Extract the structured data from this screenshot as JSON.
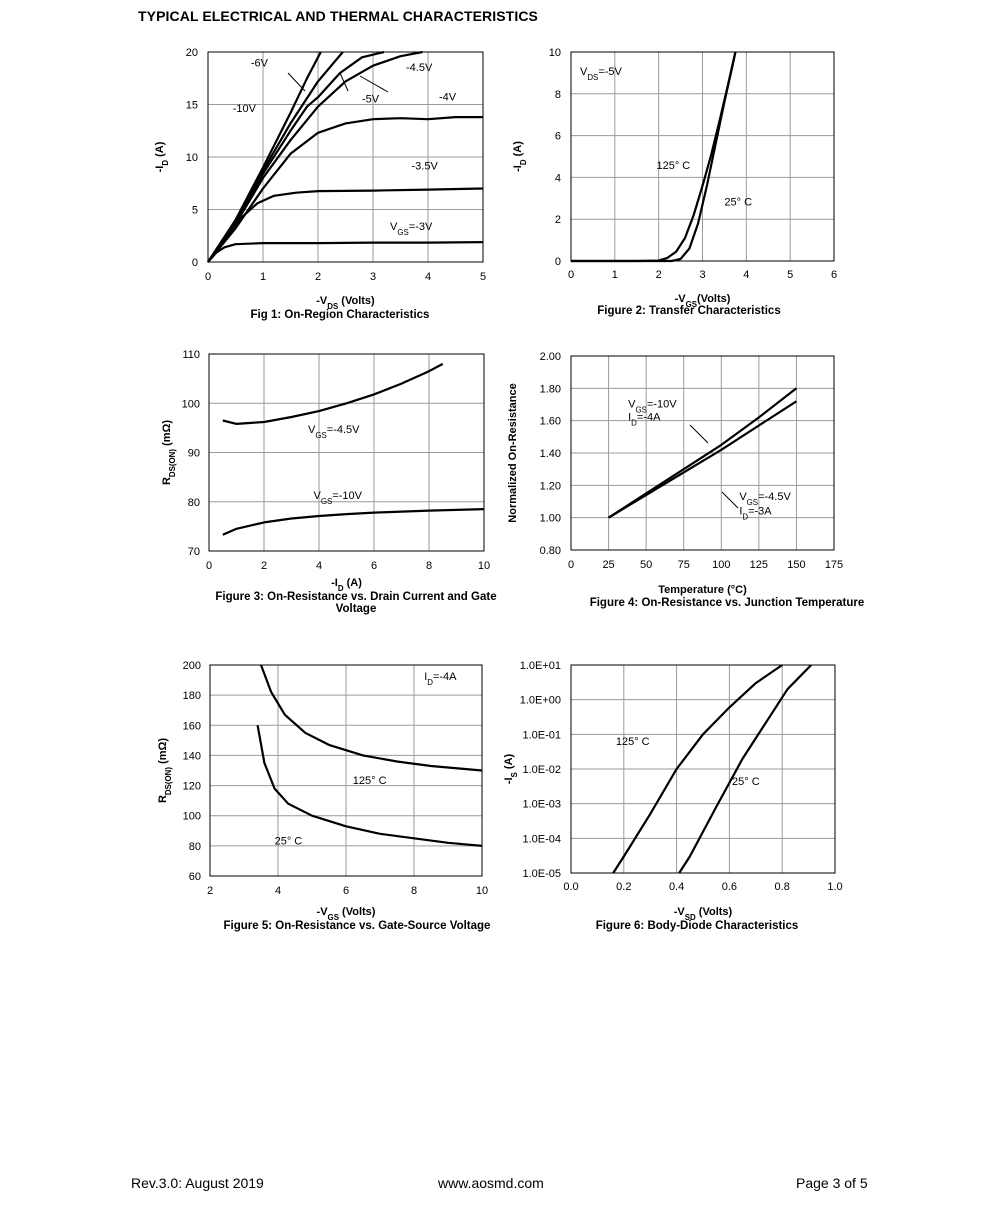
{
  "page": {
    "heading": "TYPICAL ELECTRICAL AND THERMAL CHARACTERISTICS",
    "footer_left": "Rev.3.0: August 2019",
    "footer_center": "www.aosmd.com",
    "footer_right": "Page 3 of 5"
  },
  "chart_data": [
    {
      "id": "fig1",
      "type": "line",
      "caption": "Fig 1: On-Region Characteristics",
      "xlabel": {
        "main": "-V",
        "sub": "DS",
        "rest": " (Volts)"
      },
      "ylabel": {
        "main": "-I",
        "sub": "D",
        "rest": " (A)"
      },
      "xlim": [
        0,
        5
      ],
      "ylim": [
        0,
        20
      ],
      "xticks": [
        "0",
        "1",
        "2",
        "3",
        "4",
        "5"
      ],
      "yticks": [
        "0",
        "5",
        "10",
        "15",
        "20"
      ],
      "grid": true,
      "series": [
        {
          "name": "-10V",
          "points": [
            [
              0,
              0
            ],
            [
              0.5,
              4
            ],
            [
              1,
              9
            ],
            [
              1.5,
              14.2
            ],
            [
              1.8,
              17.5
            ],
            [
              2.05,
              20
            ]
          ]
        },
        {
          "name": "-6V",
          "points": [
            [
              0,
              0
            ],
            [
              0.5,
              3.9
            ],
            [
              1,
              8.7
            ],
            [
              1.5,
              13.2
            ],
            [
              2,
              17.2
            ],
            [
              2.45,
              20
            ]
          ]
        },
        {
          "name": "-5V",
          "points": [
            [
              0,
              0
            ],
            [
              0.5,
              3.8
            ],
            [
              1,
              8.4
            ],
            [
              1.5,
              12.5
            ],
            [
              1.8,
              14.8
            ],
            [
              2,
              15.7
            ],
            [
              2.4,
              18
            ],
            [
              2.8,
              19.5
            ],
            [
              3.2,
              20
            ]
          ]
        },
        {
          "name": "-4.5V",
          "points": [
            [
              0,
              0
            ],
            [
              0.5,
              3.6
            ],
            [
              1,
              8
            ],
            [
              1.5,
              11.6
            ],
            [
              2,
              14.8
            ],
            [
              2.5,
              17.2
            ],
            [
              3,
              18.7
            ],
            [
              3.5,
              19.6
            ],
            [
              3.9,
              20
            ]
          ]
        },
        {
          "name": "-4V",
          "points": [
            [
              0,
              0
            ],
            [
              0.5,
              3.2
            ],
            [
              1,
              7
            ],
            [
              1.5,
              10.3
            ],
            [
              2,
              12.3
            ],
            [
              2.5,
              13.2
            ],
            [
              3,
              13.6
            ],
            [
              3.5,
              13.7
            ],
            [
              4,
              13.6
            ],
            [
              4.5,
              13.8
            ],
            [
              5,
              13.8
            ]
          ]
        },
        {
          "name": "-3.5V",
          "points": [
            [
              0,
              0
            ],
            [
              0.3,
              2.2
            ],
            [
              0.6,
              4.2
            ],
            [
              0.9,
              5.6
            ],
            [
              1.2,
              6.3
            ],
            [
              1.6,
              6.6
            ],
            [
              2,
              6.75
            ],
            [
              3,
              6.8
            ],
            [
              4,
              6.9
            ],
            [
              5,
              7
            ]
          ]
        },
        {
          "name": "VGS=-3V",
          "points": [
            [
              0,
              0
            ],
            [
              0.15,
              0.9
            ],
            [
              0.3,
              1.4
            ],
            [
              0.5,
              1.7
            ],
            [
              1,
              1.8
            ],
            [
              2,
              1.8
            ],
            [
              3,
              1.85
            ],
            [
              4,
              1.85
            ],
            [
              5,
              1.9
            ]
          ]
        }
      ],
      "annotations": [
        {
          "text": "-6V",
          "x": 0.78,
          "y": 18.6
        },
        {
          "text": "-10V",
          "x": 0.45,
          "y": 14.3
        },
        {
          "text": "-5V",
          "x": 2.8,
          "y": 15.2
        },
        {
          "text": "-4.5V",
          "x": 3.6,
          "y": 18.2
        },
        {
          "text": "-4V",
          "x": 4.2,
          "y": 15.4
        },
        {
          "text": "-3.5V",
          "x": 3.7,
          "y": 8.8
        }
      ],
      "vgs_label": {
        "main": "V",
        "sub": "GS",
        "rest": "=-3V"
      }
    },
    {
      "id": "fig2",
      "type": "line",
      "caption": "Figure 2: Transfer Characteristics",
      "xlabel": {
        "main": "-V",
        "sub": "GS",
        "rest": "(Volts)"
      },
      "ylabel": {
        "main": "-I",
        "sub": "D",
        "rest": " (A)"
      },
      "xlim": [
        0,
        6
      ],
      "ylim": [
        0,
        10
      ],
      "xticks": [
        "0",
        "1",
        "2",
        "3",
        "4",
        "5",
        "6"
      ],
      "yticks": [
        "0",
        "2",
        "4",
        "6",
        "8",
        "10"
      ],
      "grid": true,
      "series": [
        {
          "name": "125° C",
          "points": [
            [
              0,
              0
            ],
            [
              1.5,
              0
            ],
            [
              2,
              0.02
            ],
            [
              2.2,
              0.15
            ],
            [
              2.4,
              0.45
            ],
            [
              2.6,
              1.1
            ],
            [
              2.8,
              2.2
            ],
            [
              3,
              3.6
            ],
            [
              3.2,
              5.1
            ],
            [
              3.4,
              6.8
            ],
            [
              3.6,
              8.6
            ],
            [
              3.75,
              10
            ]
          ]
        },
        {
          "name": "25° C",
          "points": [
            [
              0,
              0
            ],
            [
              2.3,
              0
            ],
            [
              2.5,
              0.1
            ],
            [
              2.7,
              0.6
            ],
            [
              2.9,
              1.8
            ],
            [
              3.1,
              3.6
            ],
            [
              3.3,
              5.6
            ],
            [
              3.5,
              7.6
            ],
            [
              3.7,
              9.5
            ],
            [
              3.75,
              10
            ]
          ]
        }
      ],
      "vds_label": {
        "main": "V",
        "sub": "DS",
        "rest": "=-5V"
      },
      "annotations": [
        {
          "text": "125° C",
          "x": 1.95,
          "y": 4.4
        },
        {
          "text": "25° C",
          "x": 3.5,
          "y": 2.65
        }
      ]
    },
    {
      "id": "fig3",
      "type": "line",
      "caption": "Figure 3: On-Resistance vs. Drain Current and Gate Voltage",
      "caption_lines": [
        "Figure 3: On-Resistance vs. Drain Current and Gate",
        "Voltage"
      ],
      "xlabel": {
        "main": "-I",
        "sub": "D",
        "rest": " (A)"
      },
      "ylabel": {
        "main": "R",
        "sub": "DS(ON)",
        "rest": " (mΩ)"
      },
      "xlim": [
        0,
        10
      ],
      "ylim": [
        70,
        110
      ],
      "xticks": [
        "0",
        "2",
        "4",
        "6",
        "8",
        "10"
      ],
      "yticks": [
        "70",
        "80",
        "90",
        "100",
        "110"
      ],
      "grid": true,
      "series": [
        {
          "name": "VGS=-4.5V",
          "points": [
            [
              0.5,
              96.5
            ],
            [
              1,
              95.8
            ],
            [
              2,
              96.2
            ],
            [
              3,
              97.2
            ],
            [
              4,
              98.4
            ],
            [
              5,
              100
            ],
            [
              6,
              101.8
            ],
            [
              7,
              104
            ],
            [
              8,
              106.5
            ],
            [
              8.5,
              108
            ]
          ]
        },
        {
          "name": "VGS=-10V",
          "points": [
            [
              0.5,
              73.3
            ],
            [
              1,
              74.5
            ],
            [
              2,
              75.8
            ],
            [
              3,
              76.6
            ],
            [
              4,
              77.1
            ],
            [
              5,
              77.5
            ],
            [
              6,
              77.8
            ],
            [
              7,
              78
            ],
            [
              8,
              78.2
            ],
            [
              10,
              78.5
            ]
          ]
        }
      ],
      "labels": [
        {
          "main": "V",
          "sub": "GS",
          "rest": "=-4.5V",
          "x": 3.6,
          "y": 94
        },
        {
          "main": "V",
          "sub": "GS",
          "rest": "=-10V",
          "x": 3.8,
          "y": 80.6
        }
      ]
    },
    {
      "id": "fig4",
      "type": "line",
      "caption": "Figure 4: On-Resistance vs. Junction Temperature",
      "xlabel": {
        "main": "Temperature (°C)",
        "sub": "",
        "rest": ""
      },
      "ylabel": {
        "main": "Normalized On-Resistance",
        "sub": "",
        "rest": ""
      },
      "xlim": [
        0,
        175
      ],
      "ylim": [
        0.8,
        2.0
      ],
      "xticks": [
        "0",
        "25",
        "50",
        "75",
        "100",
        "125",
        "150",
        "175"
      ],
      "yticks": [
        "0.80",
        "1.00",
        "1.20",
        "1.40",
        "1.60",
        "1.80",
        "2.00"
      ],
      "grid": true,
      "series": [
        {
          "name": "VGS=-10V, ID=-4A",
          "points": [
            [
              25,
              1.0
            ],
            [
              50,
              1.15
            ],
            [
              75,
              1.3
            ],
            [
              100,
              1.45
            ],
            [
              125,
              1.62
            ],
            [
              150,
              1.8
            ]
          ]
        },
        {
          "name": "VGS=-4.5V, ID=-3A",
          "points": [
            [
              25,
              1.0
            ],
            [
              50,
              1.14
            ],
            [
              75,
              1.28
            ],
            [
              100,
              1.42
            ],
            [
              125,
              1.57
            ],
            [
              150,
              1.72
            ]
          ]
        }
      ],
      "labels": [
        {
          "main": "V",
          "sub": "GS",
          "rest": "=-10V",
          "x": 38,
          "y": 1.68
        },
        {
          "main": "I",
          "sub": "D",
          "rest": "=-4A",
          "x": 38,
          "y": 1.6
        },
        {
          "main": "V",
          "sub": "GS",
          "rest": "=-4.5V",
          "x": 112,
          "y": 1.11
        },
        {
          "main": "I",
          "sub": "D",
          "rest": "=-3A",
          "x": 112,
          "y": 1.02
        }
      ]
    },
    {
      "id": "fig5",
      "type": "line",
      "caption": "Figure 5: On-Resistance vs. Gate-Source Voltage",
      "xlabel": {
        "main": "-V",
        "sub": "GS",
        "rest": " (Volts)"
      },
      "ylabel": {
        "main": "R",
        "sub": "DS(ON)",
        "rest": " (mΩ)"
      },
      "xlim": [
        2,
        10
      ],
      "ylim": [
        60,
        200
      ],
      "xticks": [
        "2",
        "4",
        "6",
        "8",
        "10"
      ],
      "yticks": [
        "60",
        "80",
        "100",
        "120",
        "140",
        "160",
        "180",
        "200"
      ],
      "grid": true,
      "series": [
        {
          "name": "125° C",
          "points": [
            [
              3.5,
              200
            ],
            [
              3.8,
              182
            ],
            [
              4.2,
              167
            ],
            [
              4.8,
              155
            ],
            [
              5.5,
              147
            ],
            [
              6.5,
              140
            ],
            [
              7.5,
              136
            ],
            [
              8.5,
              133
            ],
            [
              10,
              130
            ]
          ]
        },
        {
          "name": "25° C",
          "points": [
            [
              3.4,
              160
            ],
            [
              3.6,
              135
            ],
            [
              3.9,
              118
            ],
            [
              4.3,
              108
            ],
            [
              5,
              100
            ],
            [
              6,
              93
            ],
            [
              7,
              88
            ],
            [
              8,
              85
            ],
            [
              9,
              82
            ],
            [
              10,
              80
            ]
          ]
        }
      ],
      "labels": [
        {
          "main": "I",
          "sub": "D",
          "rest": "=-4A",
          "x": 8.3,
          "y": 190
        }
      ],
      "annotations": [
        {
          "text": "125° C",
          "x": 6.2,
          "y": 121
        },
        {
          "text": "25° C",
          "x": 3.9,
          "y": 81
        }
      ]
    },
    {
      "id": "fig6",
      "type": "line",
      "caption": "Figure 6: Body-Diode Characteristics",
      "xlabel": {
        "main": "-V",
        "sub": "SD",
        "rest": " (Volts)"
      },
      "ylabel": {
        "main": "-I",
        "sub": "S",
        "rest": " (A)"
      },
      "xlim": [
        0.0,
        1.0
      ],
      "ylim": [
        -5,
        1
      ],
      "yscale": "log",
      "xticks": [
        "0.0",
        "0.2",
        "0.4",
        "0.6",
        "0.8",
        "1.0"
      ],
      "yticks": [
        "1.0E-05",
        "1.0E-04",
        "1.0E-03",
        "1.0E-02",
        "1.0E-01",
        "1.0E+00",
        "1.0E+01"
      ],
      "grid": true,
      "series": [
        {
          "name": "125° C",
          "points": [
            [
              0.16,
              1e-05
            ],
            [
              0.2,
              3e-05
            ],
            [
              0.3,
              0.0005
            ],
            [
              0.4,
              0.01
            ],
            [
              0.5,
              0.1
            ],
            [
              0.6,
              0.6
            ],
            [
              0.7,
              3
            ],
            [
              0.8,
              10
            ]
          ]
        },
        {
          "name": "25° C",
          "points": [
            [
              0.41,
              1e-05
            ],
            [
              0.45,
              3e-05
            ],
            [
              0.55,
              0.0008
            ],
            [
              0.65,
              0.02
            ],
            [
              0.75,
              0.3
            ],
            [
              0.82,
              2
            ],
            [
              0.91,
              10
            ]
          ]
        }
      ],
      "annotations": [
        {
          "text": "125° C",
          "x": 0.17,
          "y": 0.05
        },
        {
          "text": "25° C",
          "x": 0.61,
          "y": 0.0035
        }
      ]
    }
  ]
}
